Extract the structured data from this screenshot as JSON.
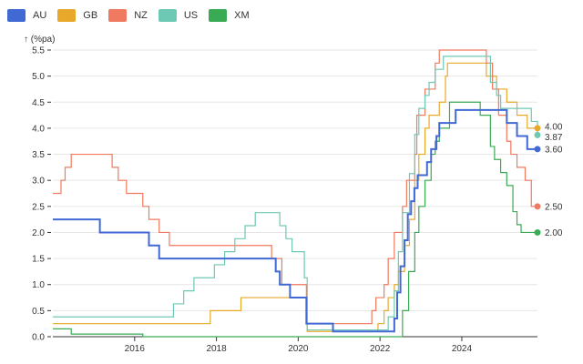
{
  "chart_data": {
    "type": "line",
    "title": "",
    "ylabel": "↑ (%pa)",
    "xlabel": "",
    "ylim": [
      0,
      5.5
    ],
    "xlim": [
      2014.0,
      2025.85
    ],
    "y_ticks": [
      0,
      0.5,
      1,
      1.5,
      2,
      2.5,
      3,
      3.5,
      4,
      4.5,
      5,
      5.5
    ],
    "y_tick_labels": [
      "0.0",
      "0.5",
      "1.0",
      "1.5",
      "2.0",
      "2.5",
      "3.0",
      "3.5",
      "4.0",
      "4.5",
      "5.0",
      "5.5"
    ],
    "x_ticks": [
      2016,
      2018,
      2020,
      2022,
      2024
    ],
    "x_tick_labels": [
      "2016",
      "2018",
      "2020",
      "2022",
      "2024"
    ],
    "grid": "horizontal",
    "step": true,
    "series": [
      {
        "name": "AU",
        "color": "#4169d4",
        "points": [
          [
            2014.0,
            2.25
          ],
          [
            2015.15,
            2.0
          ],
          [
            2015.4,
            2.0
          ],
          [
            2016.35,
            1.75
          ],
          [
            2016.6,
            1.5
          ],
          [
            2019.45,
            1.25
          ],
          [
            2019.55,
            1.0
          ],
          [
            2019.8,
            0.75
          ],
          [
            2020.2,
            0.25
          ],
          [
            2020.85,
            0.1
          ],
          [
            2022.35,
            0.35
          ],
          [
            2022.42,
            0.85
          ],
          [
            2022.5,
            1.35
          ],
          [
            2022.6,
            1.85
          ],
          [
            2022.68,
            2.35
          ],
          [
            2022.76,
            2.6
          ],
          [
            2022.84,
            2.85
          ],
          [
            2022.92,
            3.1
          ],
          [
            2023.15,
            3.35
          ],
          [
            2023.25,
            3.6
          ],
          [
            2023.38,
            3.85
          ],
          [
            2023.45,
            4.1
          ],
          [
            2023.5,
            4.1
          ],
          [
            2023.85,
            4.35
          ],
          [
            2025.1,
            4.1
          ],
          [
            2025.35,
            3.85
          ],
          [
            2025.6,
            3.6
          ],
          [
            2025.85,
            3.6
          ]
        ],
        "end_label": "3.60"
      },
      {
        "name": "GB",
        "color": "#e8a92a",
        "points": [
          [
            2014.0,
            0.25
          ],
          [
            2015.0,
            0.25
          ],
          [
            2016.6,
            0.25
          ],
          [
            2017.85,
            0.5
          ],
          [
            2018.6,
            0.75
          ],
          [
            2020.2,
            0.25
          ],
          [
            2020.22,
            0.1
          ],
          [
            2021.95,
            0.25
          ],
          [
            2022.1,
            0.5
          ],
          [
            2022.2,
            0.75
          ],
          [
            2022.35,
            1.0
          ],
          [
            2022.45,
            1.25
          ],
          [
            2022.6,
            1.75
          ],
          [
            2022.72,
            2.25
          ],
          [
            2022.85,
            3.0
          ],
          [
            2022.95,
            3.5
          ],
          [
            2023.1,
            4.0
          ],
          [
            2023.2,
            4.25
          ],
          [
            2023.45,
            4.5
          ],
          [
            2023.6,
            5.0
          ],
          [
            2023.65,
            5.25
          ],
          [
            2024.6,
            5.0
          ],
          [
            2024.85,
            4.75
          ],
          [
            2025.1,
            4.5
          ],
          [
            2025.35,
            4.25
          ],
          [
            2025.6,
            4.0
          ],
          [
            2025.85,
            4.0
          ]
        ],
        "end_label": "4.00"
      },
      {
        "name": "NZ",
        "color": "#f07a5f",
        "points": [
          [
            2014.0,
            2.75
          ],
          [
            2014.2,
            3.0
          ],
          [
            2014.3,
            3.25
          ],
          [
            2014.45,
            3.5
          ],
          [
            2015.45,
            3.25
          ],
          [
            2015.6,
            3.0
          ],
          [
            2015.8,
            2.75
          ],
          [
            2016.2,
            2.5
          ],
          [
            2016.35,
            2.25
          ],
          [
            2016.6,
            2.0
          ],
          [
            2016.85,
            1.75
          ],
          [
            2019.35,
            1.5
          ],
          [
            2019.6,
            1.0
          ],
          [
            2020.2,
            0.25
          ],
          [
            2021.8,
            0.5
          ],
          [
            2021.9,
            0.75
          ],
          [
            2022.1,
            1.0
          ],
          [
            2022.2,
            1.5
          ],
          [
            2022.35,
            2.0
          ],
          [
            2022.55,
            2.5
          ],
          [
            2022.65,
            3.0
          ],
          [
            2022.85,
            3.5
          ],
          [
            2022.9,
            4.25
          ],
          [
            2023.1,
            4.75
          ],
          [
            2023.35,
            5.25
          ],
          [
            2023.45,
            5.5
          ],
          [
            2024.6,
            5.25
          ],
          [
            2024.75,
            4.75
          ],
          [
            2024.9,
            4.25
          ],
          [
            2025.1,
            3.75
          ],
          [
            2025.2,
            3.5
          ],
          [
            2025.35,
            3.25
          ],
          [
            2025.55,
            3.0
          ],
          [
            2025.7,
            2.5
          ],
          [
            2025.85,
            2.5
          ]
        ],
        "end_label": "2.50"
      },
      {
        "name": "US",
        "color": "#6ec9b4",
        "points": [
          [
            2014.0,
            0.38
          ],
          [
            2015.95,
            0.38
          ],
          [
            2016.95,
            0.63
          ],
          [
            2017.2,
            0.88
          ],
          [
            2017.45,
            1.13
          ],
          [
            2017.95,
            1.38
          ],
          [
            2018.2,
            1.63
          ],
          [
            2018.45,
            1.88
          ],
          [
            2018.7,
            2.13
          ],
          [
            2018.95,
            2.38
          ],
          [
            2019.55,
            2.13
          ],
          [
            2019.7,
            1.88
          ],
          [
            2019.85,
            1.63
          ],
          [
            2020.15,
            1.13
          ],
          [
            2020.22,
            0.13
          ],
          [
            2022.2,
            0.38
          ],
          [
            2022.35,
            0.88
          ],
          [
            2022.45,
            1.63
          ],
          [
            2022.55,
            2.38
          ],
          [
            2022.72,
            3.13
          ],
          [
            2022.85,
            3.88
          ],
          [
            2022.95,
            4.38
          ],
          [
            2023.1,
            4.63
          ],
          [
            2023.2,
            4.88
          ],
          [
            2023.35,
            5.13
          ],
          [
            2023.55,
            5.38
          ],
          [
            2024.7,
            4.88
          ],
          [
            2024.85,
            4.63
          ],
          [
            2024.95,
            4.38
          ],
          [
            2025.7,
            4.13
          ],
          [
            2025.85,
            3.87
          ]
        ],
        "end_label": "3.87"
      },
      {
        "name": "XM",
        "color": "#3aab55",
        "points": [
          [
            2014.0,
            0.15
          ],
          [
            2014.45,
            0.05
          ],
          [
            2014.7,
            0.05
          ],
          [
            2016.2,
            0.0
          ],
          [
            2022.55,
            0.5
          ],
          [
            2022.7,
            1.25
          ],
          [
            2022.85,
            2.0
          ],
          [
            2022.95,
            2.5
          ],
          [
            2023.1,
            3.0
          ],
          [
            2023.25,
            3.5
          ],
          [
            2023.35,
            3.75
          ],
          [
            2023.45,
            4.0
          ],
          [
            2023.7,
            4.5
          ],
          [
            2024.45,
            4.25
          ],
          [
            2024.7,
            3.65
          ],
          [
            2024.8,
            3.4
          ],
          [
            2024.95,
            3.15
          ],
          [
            2025.1,
            2.9
          ],
          [
            2025.25,
            2.4
          ],
          [
            2025.35,
            2.15
          ],
          [
            2025.45,
            2.0
          ],
          [
            2025.85,
            2.0
          ]
        ],
        "end_label": "2.00"
      }
    ]
  }
}
